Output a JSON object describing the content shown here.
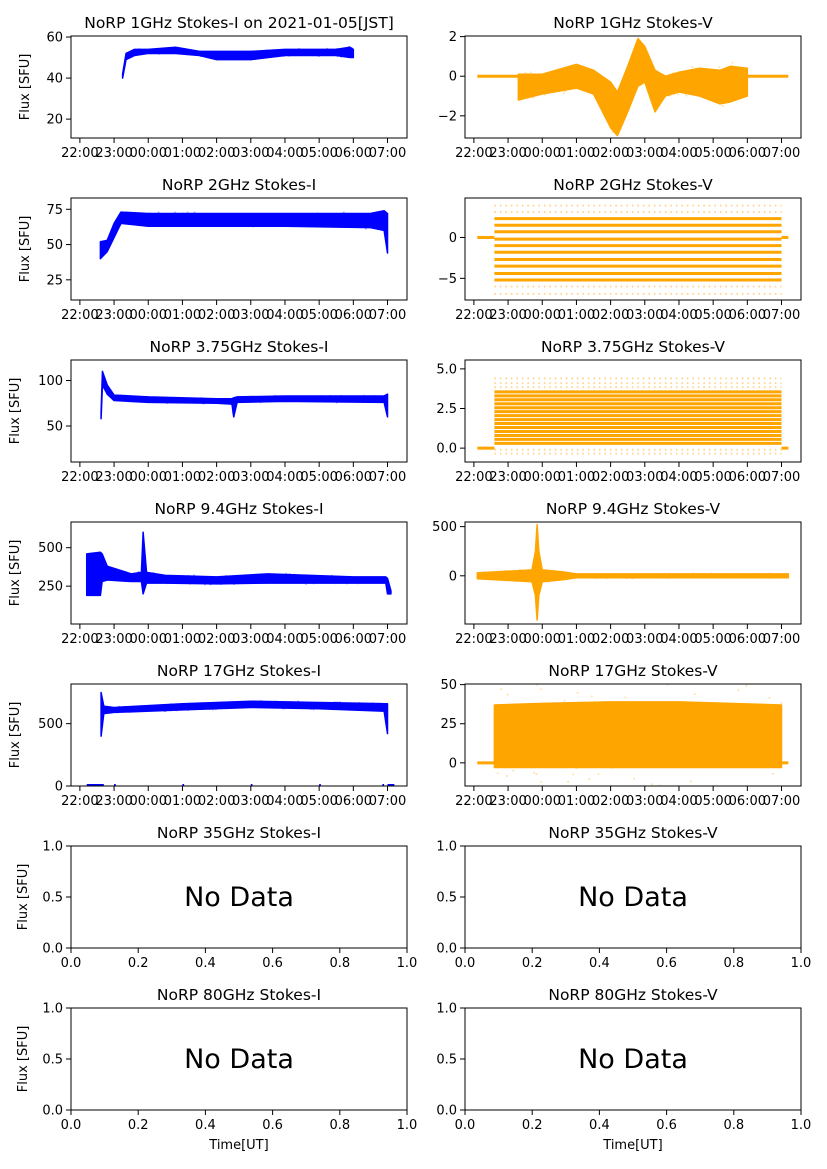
{
  "chart_data": [
    {
      "id": "1ghz-i",
      "type": "scatter",
      "title": "NoRP 1GHz Stokes-I on 2021-01-05[JST]",
      "ylabel": "Flux [SFU]",
      "xlabel": "",
      "color": "#0000ff",
      "xlim": [
        21.74,
        31.57
      ],
      "ylim": [
        10.8,
        60.5
      ],
      "xticks": [
        22,
        23,
        24,
        25,
        26,
        27,
        28,
        29,
        30,
        31
      ],
      "xtick_labels": [
        "22:00",
        "23:00",
        "00:00",
        "01:00",
        "02:00",
        "03:00",
        "04:00",
        "05:00",
        "06:00",
        "07:00"
      ],
      "yticks": [
        20,
        40,
        60
      ],
      "ytick_labels": [
        "20",
        "40",
        "60"
      ],
      "envelope": [
        [
          23.25,
          40,
          42
        ],
        [
          23.35,
          49,
          52
        ],
        [
          23.6,
          51,
          54
        ],
        [
          24,
          52,
          54
        ],
        [
          24.8,
          52,
          55
        ],
        [
          25.5,
          51,
          53
        ],
        [
          26,
          49,
          53
        ],
        [
          27,
          49,
          53
        ],
        [
          28,
          51,
          54
        ],
        [
          29,
          51,
          54
        ],
        [
          29.5,
          51,
          54
        ],
        [
          29.9,
          50,
          55
        ],
        [
          30.0,
          50,
          54
        ]
      ],
      "flat": [],
      "levels": [],
      "sparse_levels": []
    },
    {
      "id": "1ghz-v",
      "type": "scatter",
      "title": "NoRP 1GHz Stokes-V",
      "ylabel": "",
      "xlabel": "",
      "color": "#ffa500",
      "xlim": [
        21.74,
        31.57
      ],
      "ylim": [
        -3.12,
        2.03
      ],
      "xticks": [
        22,
        23,
        24,
        25,
        26,
        27,
        28,
        29,
        30,
        31
      ],
      "xtick_labels": [
        "22:00",
        "23:00",
        "00:00",
        "01:00",
        "02:00",
        "03:00",
        "04:00",
        "05:00",
        "06:00",
        "07:00"
      ],
      "yticks": [
        -2,
        0,
        2
      ],
      "ytick_labels": [
        "−2",
        "0",
        "2"
      ],
      "envelope": [
        [
          23.3,
          -1.2,
          0.1
        ],
        [
          24,
          -0.9,
          0.1
        ],
        [
          25,
          -0.6,
          0.6
        ],
        [
          25.5,
          -0.9,
          0.3
        ],
        [
          26,
          -2.6,
          -0.3
        ],
        [
          26.2,
          -3.0,
          -0.8
        ],
        [
          26.5,
          -1.8,
          0.5
        ],
        [
          26.8,
          -0.5,
          1.9
        ],
        [
          27,
          -0.3,
          1.5
        ],
        [
          27.3,
          -1.8,
          0.3
        ],
        [
          27.6,
          -1.0,
          0.0
        ],
        [
          28,
          -0.8,
          0.2
        ],
        [
          28.6,
          -1.0,
          0.4
        ],
        [
          29.2,
          -1.4,
          0.3
        ],
        [
          29.5,
          -1.3,
          0.5
        ],
        [
          30,
          -1.0,
          0.4
        ]
      ],
      "flat": [
        [
          22.1,
          23.3,
          0
        ],
        [
          30.0,
          31.2,
          0
        ]
      ],
      "levels": [],
      "sparse_levels": []
    },
    {
      "id": "2ghz-i",
      "type": "scatter",
      "title": "NoRP 2GHz Stokes-I",
      "ylabel": "Flux [SFU]",
      "xlabel": "",
      "color": "#0000ff",
      "xlim": [
        21.74,
        31.57
      ],
      "ylim": [
        10.7,
        83
      ],
      "xticks": [
        22,
        23,
        24,
        25,
        26,
        27,
        28,
        29,
        30,
        31
      ],
      "xtick_labels": [
        "22:00",
        "23:00",
        "00:00",
        "01:00",
        "02:00",
        "03:00",
        "04:00",
        "05:00",
        "06:00",
        "07:00"
      ],
      "yticks": [
        25,
        50,
        75
      ],
      "ytick_labels": [
        "25",
        "50",
        "75"
      ],
      "envelope": [
        [
          22.6,
          40,
          52
        ],
        [
          22.8,
          45,
          53
        ],
        [
          23.0,
          55,
          65
        ],
        [
          23.2,
          65,
          73
        ],
        [
          24,
          63,
          72
        ],
        [
          28,
          63,
          72
        ],
        [
          30.5,
          62,
          72
        ],
        [
          30.9,
          60,
          74
        ],
        [
          31.0,
          44,
          72
        ]
      ],
      "flat": [],
      "levels": [],
      "sparse_levels": []
    },
    {
      "id": "2ghz-v",
      "type": "scatter",
      "title": "NoRP 2GHz Stokes-V",
      "ylabel": "",
      "xlabel": "",
      "color": "#ffa500",
      "xlim": [
        21.74,
        31.57
      ],
      "ylim": [
        -7.65,
        4.83
      ],
      "xticks": [
        22,
        23,
        24,
        25,
        26,
        27,
        28,
        29,
        30,
        31
      ],
      "xtick_labels": [
        "22:00",
        "23:00",
        "00:00",
        "01:00",
        "02:00",
        "03:00",
        "04:00",
        "05:00",
        "06:00",
        "07:00"
      ],
      "yticks": [
        -5,
        0
      ],
      "ytick_labels": [
        "−5",
        "0"
      ],
      "envelope": [],
      "flat": [
        [
          22.1,
          22.6,
          0
        ],
        [
          31.0,
          31.2,
          0
        ]
      ],
      "levels": [
        [
          22.6,
          31.0,
          2.3
        ],
        [
          22.6,
          31.0,
          1.5
        ],
        [
          22.6,
          31.0,
          0.7
        ],
        [
          22.6,
          31.0,
          -0.2
        ],
        [
          22.6,
          31.0,
          -1.0
        ],
        [
          22.6,
          31.0,
          -1.8
        ],
        [
          22.6,
          31.0,
          -2.7
        ],
        [
          22.6,
          31.0,
          -3.5
        ],
        [
          22.6,
          31.0,
          -4.4
        ],
        [
          22.6,
          31.0,
          -5.2
        ]
      ],
      "sparse_levels": [
        [
          22.6,
          31.0,
          3.1
        ],
        [
          22.6,
          31.0,
          3.9
        ],
        [
          22.6,
          31.0,
          -6.0
        ],
        [
          22.6,
          31.0,
          -6.9
        ]
      ]
    },
    {
      "id": "3p75ghz-i",
      "type": "scatter",
      "title": "NoRP 3.75GHz Stokes-I",
      "ylabel": "Flux [SFU]",
      "xlabel": "",
      "color": "#0000ff",
      "xlim": [
        21.74,
        31.57
      ],
      "ylim": [
        10.5,
        122.5
      ],
      "xticks": [
        22,
        23,
        24,
        25,
        26,
        27,
        28,
        29,
        30,
        31
      ],
      "xtick_labels": [
        "22:00",
        "23:00",
        "00:00",
        "01:00",
        "02:00",
        "03:00",
        "04:00",
        "05:00",
        "06:00",
        "07:00"
      ],
      "yticks": [
        50,
        100
      ],
      "ytick_labels": [
        "50",
        "100"
      ],
      "envelope": [
        [
          22.62,
          58,
          65
        ],
        [
          22.66,
          95,
          110
        ],
        [
          22.8,
          85,
          95
        ],
        [
          23.0,
          78,
          84
        ],
        [
          24,
          76,
          82
        ],
        [
          26,
          75,
          80
        ],
        [
          26.45,
          74,
          80
        ],
        [
          26.5,
          60,
          81
        ],
        [
          26.6,
          76,
          82
        ],
        [
          28,
          77,
          83
        ],
        [
          30.9,
          76,
          83
        ],
        [
          31.0,
          60,
          85
        ]
      ],
      "flat": [],
      "levels": [],
      "sparse_levels": []
    },
    {
      "id": "3p75ghz-v",
      "type": "scatter",
      "title": "NoRP 3.75GHz Stokes-V",
      "ylabel": "",
      "xlabel": "",
      "color": "#ffa500",
      "xlim": [
        21.74,
        31.57
      ],
      "ylim": [
        -0.875,
        5.56
      ],
      "xticks": [
        22,
        23,
        24,
        25,
        26,
        27,
        28,
        29,
        30,
        31
      ],
      "xtick_labels": [
        "22:00",
        "23:00",
        "00:00",
        "01:00",
        "02:00",
        "03:00",
        "04:00",
        "05:00",
        "06:00",
        "07:00"
      ],
      "yticks": [
        0,
        2.5,
        5
      ],
      "ytick_labels": [
        "0.0",
        "2.5",
        "5.0"
      ],
      "envelope": [],
      "flat": [
        [
          22.1,
          22.6,
          0
        ],
        [
          31.0,
          31.2,
          0
        ]
      ],
      "levels": [
        [
          22.6,
          31.0,
          0.3
        ],
        [
          22.6,
          31.0,
          0.55
        ],
        [
          22.6,
          31.0,
          0.8
        ],
        [
          22.6,
          31.0,
          1.05
        ],
        [
          22.6,
          31.0,
          1.3
        ],
        [
          22.6,
          31.0,
          1.55
        ],
        [
          22.6,
          31.0,
          1.8
        ],
        [
          22.6,
          31.0,
          2.05
        ],
        [
          22.6,
          31.0,
          2.3
        ],
        [
          22.6,
          31.0,
          2.55
        ],
        [
          22.6,
          31.0,
          2.8
        ],
        [
          22.6,
          31.0,
          3.05
        ],
        [
          22.6,
          31.0,
          3.3
        ],
        [
          22.6,
          31.0,
          3.55
        ]
      ],
      "sparse_levels": [
        [
          22.6,
          31.0,
          3.85
        ],
        [
          22.6,
          31.0,
          4.1
        ],
        [
          22.6,
          31.0,
          4.4
        ],
        [
          22.6,
          31.0,
          -0.1
        ],
        [
          22.6,
          31.0,
          -0.35
        ]
      ]
    },
    {
      "id": "9p4ghz-i",
      "type": "scatter",
      "title": "NoRP 9.4GHz Stokes-I",
      "ylabel": "Flux [SFU]",
      "xlabel": "",
      "color": "#0000ff",
      "xlim": [
        21.74,
        31.57
      ],
      "ylim": [
        4,
        667
      ],
      "xticks": [
        22,
        23,
        24,
        25,
        26,
        27,
        28,
        29,
        30,
        31
      ],
      "xtick_labels": [
        "22:00",
        "23:00",
        "00:00",
        "01:00",
        "02:00",
        "03:00",
        "04:00",
        "05:00",
        "06:00",
        "07:00"
      ],
      "yticks": [
        250,
        500
      ],
      "ytick_labels": [
        "250",
        "500"
      ],
      "envelope": [
        [
          22.2,
          190,
          460
        ],
        [
          22.6,
          190,
          470
        ],
        [
          22.65,
          280,
          460
        ],
        [
          22.8,
          290,
          380
        ],
        [
          23.5,
          280,
          330
        ],
        [
          23.8,
          280,
          340
        ],
        [
          23.85,
          200,
          600
        ],
        [
          23.95,
          270,
          340
        ],
        [
          24.5,
          270,
          320
        ],
        [
          26,
          265,
          310
        ],
        [
          27.5,
          270,
          330
        ],
        [
          30,
          270,
          310
        ],
        [
          30.95,
          270,
          310
        ],
        [
          31.0,
          200,
          300
        ],
        [
          31.1,
          200,
          220
        ]
      ],
      "flat": [],
      "levels": [],
      "sparse_levels": []
    },
    {
      "id": "9p4ghz-v",
      "type": "scatter",
      "title": "NoRP 9.4GHz Stokes-V",
      "ylabel": "",
      "xlabel": "",
      "color": "#ffa500",
      "xlim": [
        21.74,
        31.57
      ],
      "ylim": [
        -490,
        547
      ],
      "xticks": [
        22,
        23,
        24,
        25,
        26,
        27,
        28,
        29,
        30,
        31
      ],
      "xtick_labels": [
        "22:00",
        "23:00",
        "00:00",
        "01:00",
        "02:00",
        "03:00",
        "04:00",
        "05:00",
        "06:00",
        "07:00"
      ],
      "yticks": [
        0,
        500
      ],
      "ytick_labels": [
        "0",
        "500"
      ],
      "envelope": [
        [
          22.1,
          -30,
          30
        ],
        [
          23.7,
          -60,
          60
        ],
        [
          23.8,
          -200,
          250
        ],
        [
          23.85,
          -450,
          520
        ],
        [
          23.9,
          -200,
          250
        ],
        [
          24.0,
          -60,
          60
        ],
        [
          24.6,
          -40,
          40
        ],
        [
          25,
          -20,
          20
        ],
        [
          31.2,
          -20,
          20
        ]
      ],
      "flat": [],
      "levels": [],
      "sparse_levels": []
    },
    {
      "id": "17ghz-i",
      "type": "scatter",
      "title": "NoRP 17GHz Stokes-I",
      "ylabel": "Flux [SFU]",
      "xlabel": "",
      "color": "#0000ff",
      "xlim": [
        21.74,
        31.57
      ],
      "ylim": [
        0,
        818
      ],
      "xticks": [
        22,
        23,
        24,
        25,
        26,
        27,
        28,
        29,
        30,
        31
      ],
      "xtick_labels": [
        "22:00",
        "23:00",
        "00:00",
        "01:00",
        "02:00",
        "03:00",
        "04:00",
        "05:00",
        "06:00",
        "07:00"
      ],
      "yticks": [
        0,
        500
      ],
      "ytick_labels": [
        "0",
        "500"
      ],
      "envelope": [
        [
          22.62,
          400,
          750
        ],
        [
          22.7,
          580,
          640
        ],
        [
          23,
          590,
          630
        ],
        [
          25,
          610,
          660
        ],
        [
          27,
          630,
          680
        ],
        [
          29,
          620,
          670
        ],
        [
          30.9,
          600,
          660
        ],
        [
          31.0,
          420,
          660
        ]
      ],
      "flat": [
        [
          22.2,
          22.7,
          4
        ],
        [
          23.0,
          23.05,
          4
        ],
        [
          25.0,
          25.05,
          4
        ],
        [
          27.0,
          27.05,
          4
        ],
        [
          29.0,
          29.05,
          4
        ],
        [
          30.85,
          30.9,
          4
        ],
        [
          31.0,
          31.2,
          4
        ]
      ],
      "levels": [],
      "sparse_levels": []
    },
    {
      "id": "17ghz-v",
      "type": "scatter",
      "title": "NoRP 17GHz Stokes-V",
      "ylabel": "",
      "xlabel": "",
      "color": "#ffa500",
      "xlim": [
        21.74,
        31.57
      ],
      "ylim": [
        -14.8,
        50.4
      ],
      "xticks": [
        22,
        23,
        24,
        25,
        26,
        27,
        28,
        29,
        30,
        31
      ],
      "xtick_labels": [
        "22:00",
        "23:00",
        "00:00",
        "01:00",
        "02:00",
        "03:00",
        "04:00",
        "05:00",
        "06:00",
        "07:00"
      ],
      "yticks": [
        0,
        25,
        50
      ],
      "ytick_labels": [
        "0",
        "25",
        "50"
      ],
      "envelope": [
        [
          22.6,
          -3,
          37
        ],
        [
          24,
          -3,
          38
        ],
        [
          26,
          -3,
          39
        ],
        [
          28,
          -3,
          39
        ],
        [
          31.0,
          -3,
          37
        ]
      ],
      "flat": [
        [
          22.1,
          22.6,
          0
        ],
        [
          31.0,
          31.2,
          0
        ]
      ],
      "levels": [],
      "sparse_levels": [],
      "scatter_spread": [
        -10,
        46
      ]
    },
    {
      "id": "35ghz-i",
      "type": "empty",
      "title": "NoRP 35GHz Stokes-I",
      "ylabel": "Flux [SFU]",
      "xlabel": "",
      "message": "No Data",
      "xlim": [
        0,
        1
      ],
      "ylim": [
        0,
        1
      ],
      "xticks": [
        0,
        0.2,
        0.4,
        0.6,
        0.8,
        1.0
      ],
      "xtick_labels": [
        "0.0",
        "0.2",
        "0.4",
        "0.6",
        "0.8",
        "1.0"
      ],
      "yticks": [
        0,
        0.5,
        1.0
      ],
      "ytick_labels": [
        "0.0",
        "0.5",
        "1.0"
      ]
    },
    {
      "id": "35ghz-v",
      "type": "empty",
      "title": "NoRP 35GHz Stokes-V",
      "ylabel": "",
      "xlabel": "",
      "message": "No Data",
      "xlim": [
        0,
        1
      ],
      "ylim": [
        0,
        1
      ],
      "xticks": [
        0,
        0.2,
        0.4,
        0.6,
        0.8,
        1.0
      ],
      "xtick_labels": [
        "0.0",
        "0.2",
        "0.4",
        "0.6",
        "0.8",
        "1.0"
      ],
      "yticks": [
        0,
        0.5,
        1.0
      ],
      "ytick_labels": [
        "0.0",
        "0.5",
        "1.0"
      ]
    },
    {
      "id": "80ghz-i",
      "type": "empty",
      "title": "NoRP 80GHz Stokes-I",
      "ylabel": "Flux [SFU]",
      "xlabel": "Time[UT]",
      "message": "No Data",
      "xlim": [
        0,
        1
      ],
      "ylim": [
        0,
        1
      ],
      "xticks": [
        0,
        0.2,
        0.4,
        0.6,
        0.8,
        1.0
      ],
      "xtick_labels": [
        "0.0",
        "0.2",
        "0.4",
        "0.6",
        "0.8",
        "1.0"
      ],
      "yticks": [
        0,
        0.5,
        1.0
      ],
      "ytick_labels": [
        "0.0",
        "0.5",
        "1.0"
      ]
    },
    {
      "id": "80ghz-v",
      "type": "empty",
      "title": "NoRP 80GHz Stokes-V",
      "ylabel": "",
      "xlabel": "Time[UT]",
      "message": "No Data",
      "xlim": [
        0,
        1
      ],
      "ylim": [
        0,
        1
      ],
      "xticks": [
        0,
        0.2,
        0.4,
        0.6,
        0.8,
        1.0
      ],
      "xtick_labels": [
        "0.0",
        "0.2",
        "0.4",
        "0.6",
        "0.8",
        "1.0"
      ],
      "yticks": [
        0,
        0.5,
        1.0
      ],
      "ytick_labels": [
        "0.0",
        "0.5",
        "1.0"
      ]
    }
  ]
}
